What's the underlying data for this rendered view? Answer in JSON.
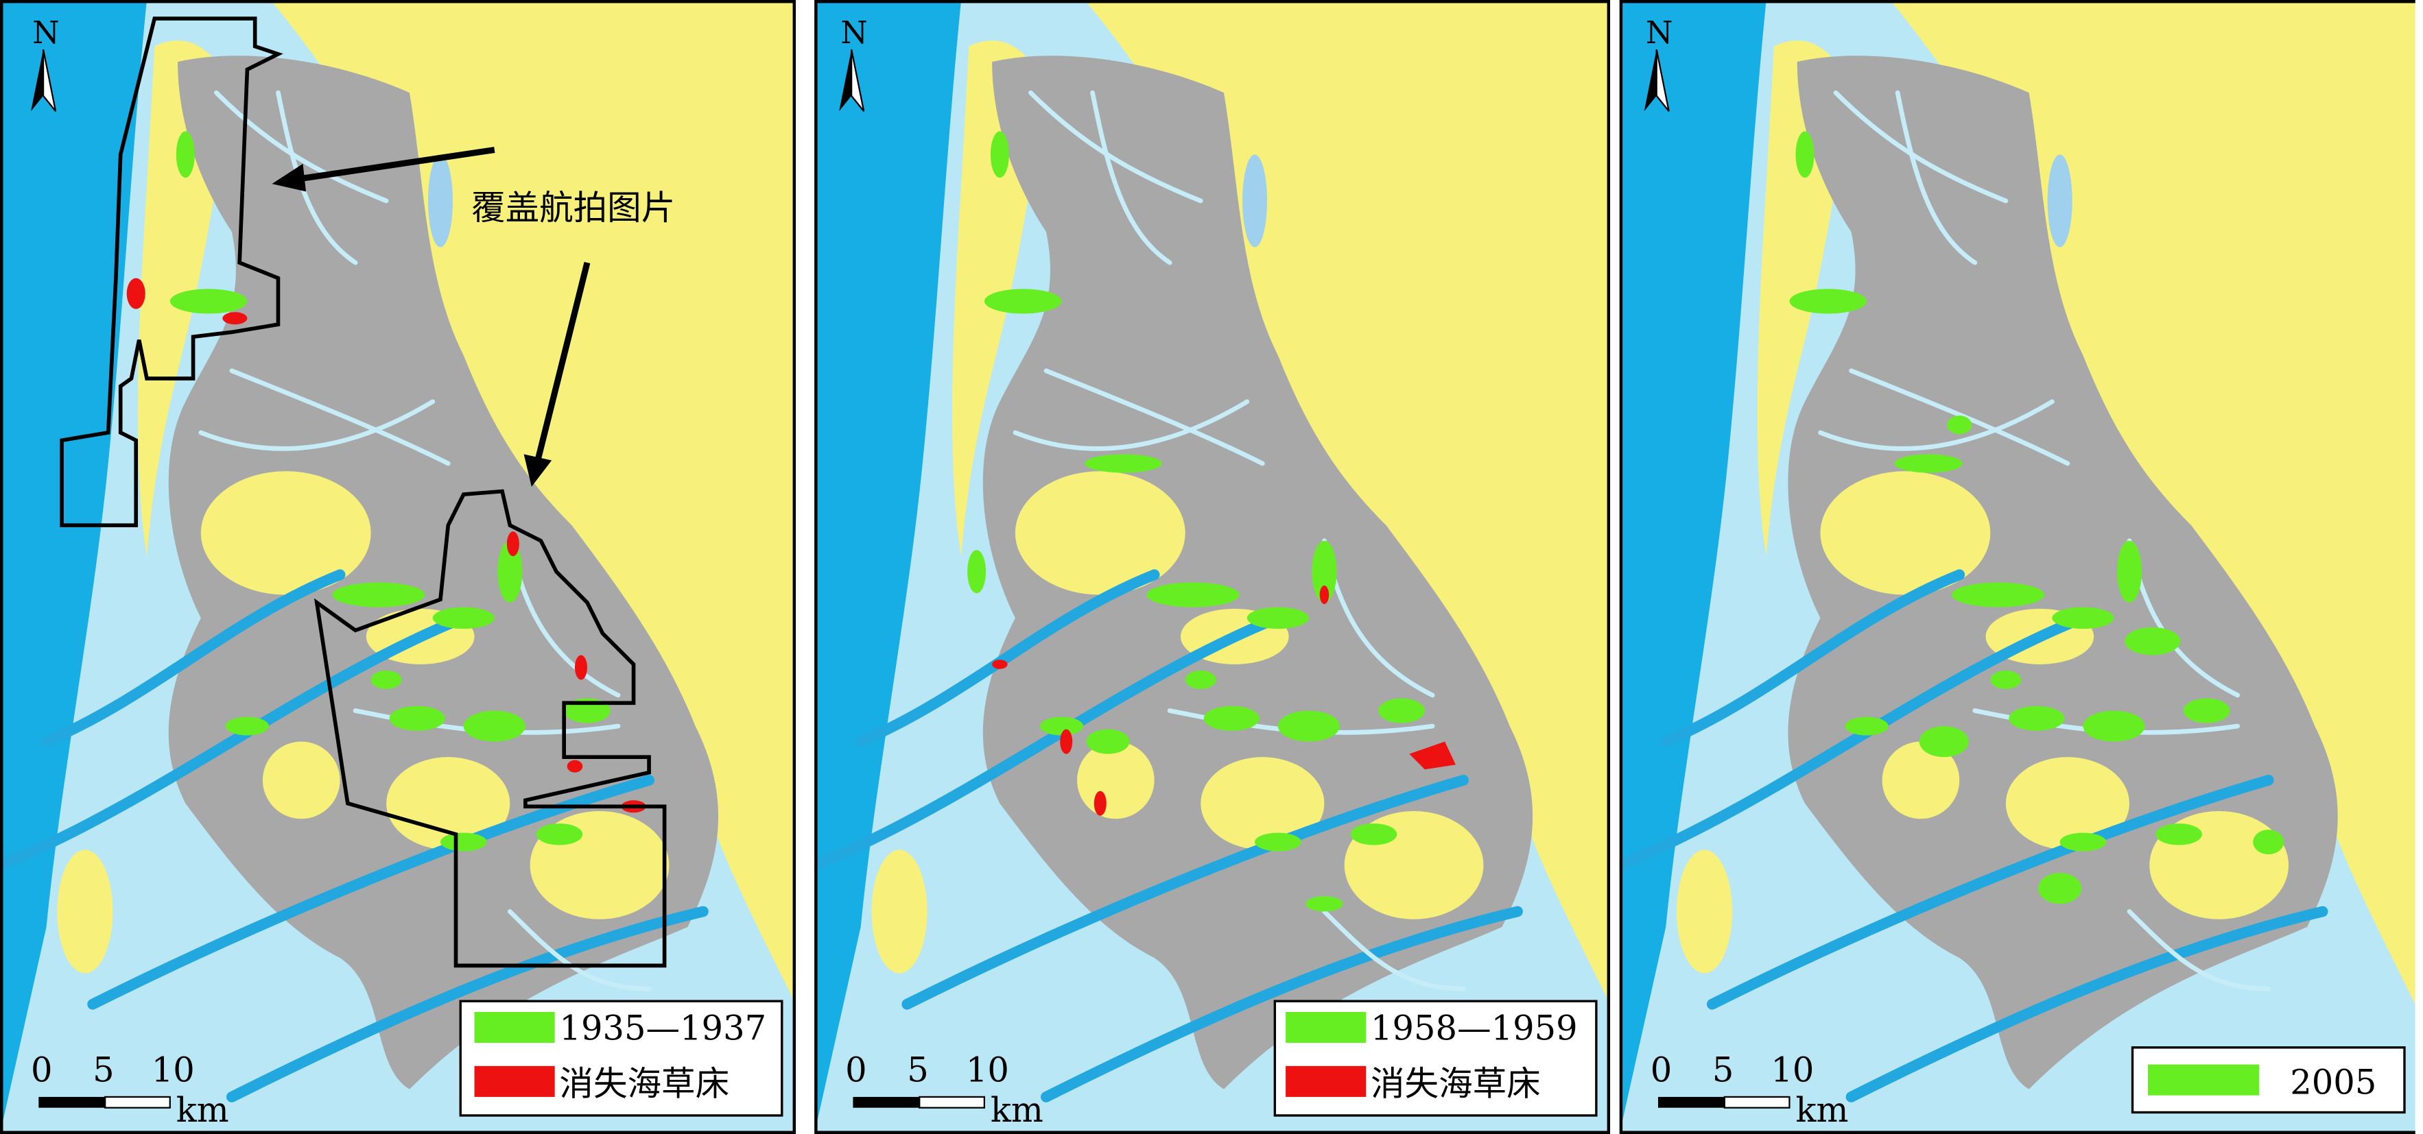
{
  "panels": [
    {
      "north": "N",
      "annotation": "覆盖航拍图片",
      "legend": [
        {
          "label": "1935—1937",
          "color": "#66ee22"
        },
        {
          "label": "消失海草床",
          "color": "#ee1111"
        }
      ],
      "scale": {
        "ticks": [
          0,
          5,
          10
        ],
        "unit": "km"
      }
    },
    {
      "north": "N",
      "legend": [
        {
          "label": "1958—1959",
          "color": "#66ee22"
        },
        {
          "label": "消失海草床",
          "color": "#ee1111"
        }
      ],
      "scale": {
        "ticks": [
          0,
          5,
          10
        ],
        "unit": "km"
      }
    },
    {
      "north": "N",
      "legend": [
        {
          "label": "2005",
          "color": "#66ee22"
        }
      ],
      "scale": {
        "ticks": [
          0,
          5,
          10
        ],
        "unit": "km"
      }
    }
  ]
}
